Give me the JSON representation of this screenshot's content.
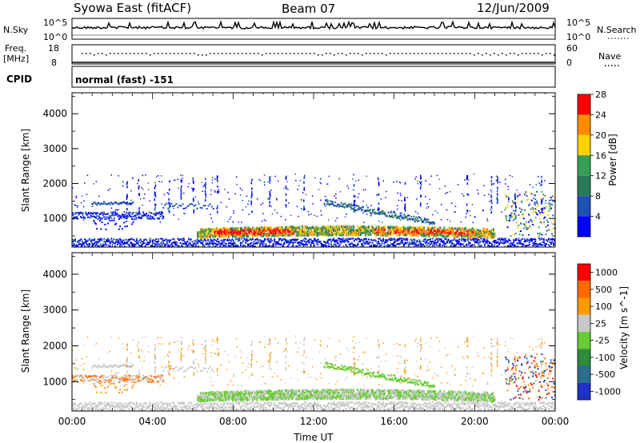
{
  "header": {
    "station": "Syowa East (fitACF)",
    "beam": "Beam 07",
    "date": "12/Jun/2009"
  },
  "panels": {
    "nsky": {
      "label": "N.Sky",
      "tick_top": "10^5",
      "tick_bottom": "10^0",
      "right_label": "N.Search",
      "right_tick_top": "10^5",
      "right_tick_bottom": "10^0"
    },
    "freq": {
      "label_line1": "Freq.",
      "label_line2": "[MHz]",
      "tick_top": "18",
      "tick_bottom": "8",
      "right_label": "Nave",
      "right_tick_top": "60",
      "right_tick_bottom": "0"
    },
    "cpid": {
      "label": "CPID",
      "value": "normal (fast) -151"
    }
  },
  "chart_data": [
    {
      "type": "heatmap",
      "title": "",
      "ylabel": "Slant Range [km]",
      "xlabel": "",
      "ylim": [
        180,
        4600
      ],
      "yticks": [
        1000,
        2000,
        3000,
        4000
      ],
      "colorbar": {
        "label": "Power [dB]",
        "ticks": [
          "4",
          "8",
          "12",
          "16",
          "20",
          "24",
          "28"
        ],
        "colors": [
          "#0000ff",
          "#1e50b4",
          "#2a7a5a",
          "#35a055",
          "#ffd200",
          "#ff8c00",
          "#ff0000"
        ]
      }
    },
    {
      "type": "heatmap",
      "title": "",
      "ylabel": "Slant Range [km]",
      "xlabel": "Time UT",
      "ylim": [
        180,
        4600
      ],
      "yticks": [
        1000,
        2000,
        3000,
        4000
      ],
      "xticks": [
        "00:00",
        "04:00",
        "08:00",
        "12:00",
        "16:00",
        "20:00",
        "00:00"
      ],
      "colorbar": {
        "label": "Velocity [m s^-1]",
        "ticks": [
          "1000",
          "500",
          "100",
          "25",
          "-25",
          "-100",
          "-500",
          "-1000"
        ],
        "colors": [
          "#1e32c8",
          "#2a6e8c",
          "#2f8c3c",
          "#66cc33",
          "#c8c8c8",
          "#ff9900",
          "#ff6a00",
          "#ff0000"
        ]
      }
    }
  ]
}
